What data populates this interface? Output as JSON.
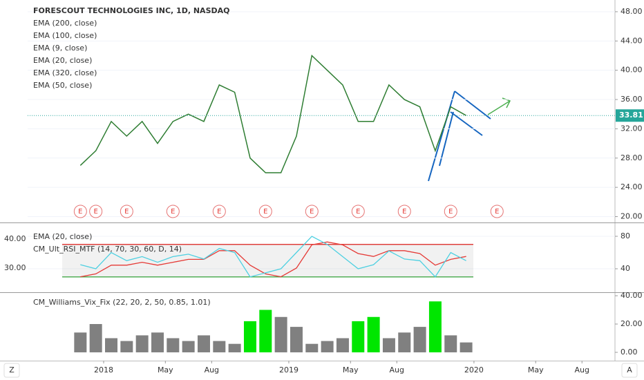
{
  "chart_data": [
    {
      "type": "line",
      "title": "FORESCOUT TECHNOLOGIES INC, 1D, NASDAQ",
      "legend": [
        {
          "name": "EMA (200, close)",
          "color": "#1e3a8a"
        },
        {
          "name": "EMA (100, close)",
          "color": "#8bc34a"
        },
        {
          "name": "EMA (9, close)",
          "color": "#26a69a"
        },
        {
          "name": "EMA (20, close)",
          "color": "#42a5f5"
        },
        {
          "name": "EMA (320, close)",
          "color": "#ef6c00"
        },
        {
          "name": "EMA (50, close)",
          "color": "#fbc02d"
        }
      ],
      "x": [
        "2017-11",
        "2017-12",
        "2018-01",
        "2018-02",
        "2018-03",
        "2018-04",
        "2018-05",
        "2018-06",
        "2018-07",
        "2018-08",
        "2018-09",
        "2018-10",
        "2018-11",
        "2018-12",
        "2019-01",
        "2019-02",
        "2019-03",
        "2019-04",
        "2019-05",
        "2019-06",
        "2019-07",
        "2019-08",
        "2019-09",
        "2019-10",
        "2019-11",
        "2019-12"
      ],
      "values": [
        27,
        29,
        33,
        31,
        33,
        30,
        33,
        34,
        33,
        38,
        37,
        28,
        26,
        26,
        31,
        42,
        40,
        38,
        33,
        33,
        38,
        36,
        35,
        29,
        35,
        33.81
      ],
      "color": "#2e7d32",
      "ylim": [
        19.2,
        49.6
      ],
      "yticks": [
        {
          "value": 20,
          "label": "20.00"
        },
        {
          "value": 24,
          "label": "24.00"
        },
        {
          "value": 28,
          "label": "28.00"
        },
        {
          "value": 32,
          "label": "32.00"
        },
        {
          "value": 36,
          "label": "36.00"
        },
        {
          "value": 40,
          "label": "40.00"
        },
        {
          "value": 44,
          "label": "44.00"
        },
        {
          "value": 48,
          "label": "48.00"
        }
      ],
      "last_price": 33.81,
      "last_price_color": "#26a69a",
      "earnings": [
        "2017-11",
        "2017-12",
        "2018-02",
        "2018-05",
        "2018-08",
        "2018-11",
        "2019-02",
        "2019-05",
        "2019-08",
        "2019-11",
        "2020-02"
      ],
      "earnings_label": "E"
    },
    {
      "type": "line",
      "x": [
        "2017-11",
        "2017-12",
        "2018-01",
        "2018-02",
        "2018-03",
        "2018-04",
        "2018-05",
        "2018-06",
        "2018-07",
        "2018-08",
        "2018-09",
        "2018-10",
        "2018-11",
        "2018-12",
        "2019-01",
        "2019-02",
        "2019-03",
        "2019-04",
        "2019-05",
        "2019-06",
        "2019-07",
        "2019-08",
        "2019-09",
        "2019-10",
        "2019-11",
        "2019-12"
      ],
      "series": [
        {
          "name": "EMA (20, close)",
          "color": "#e53935",
          "axis": "y2",
          "values": [
            27,
            28,
            31,
            31,
            32,
            31,
            32,
            33,
            33,
            36,
            36,
            31,
            28,
            27,
            30,
            38,
            39,
            38,
            35,
            34,
            36,
            36,
            35,
            31,
            33,
            34
          ]
        },
        {
          "name": "CM_Ult_RSI_MTF (14, 70, 30, 60, D, 14)",
          "color": "#4dd0e1",
          "values": [
            45,
            40,
            60,
            50,
            55,
            48,
            55,
            58,
            52,
            65,
            60,
            30,
            35,
            40,
            60,
            80,
            70,
            55,
            40,
            45,
            62,
            52,
            50,
            30,
            60,
            50
          ]
        }
      ],
      "ylim": [
        13.6,
        94.5
      ],
      "yticks": [
        40,
        80
      ],
      "y2lim": [
        22.38,
        45
      ],
      "y2ticks": [
        {
          "value": 30,
          "label": "30.00"
        },
        {
          "value": 40,
          "label": "40.00"
        }
      ],
      "bands": [
        {
          "value": 70,
          "color": "#e53935"
        },
        {
          "value": 30,
          "color": "#4caf50"
        }
      ]
    },
    {
      "type": "bar",
      "title": "CM_Williams_Vix_Fix (22, 20, 2, 50, 0.85, 1.01)",
      "x": [
        "2017-11",
        "2017-12",
        "2018-01",
        "2018-02",
        "2018-03",
        "2018-04",
        "2018-05",
        "2018-06",
        "2018-07",
        "2018-08",
        "2018-09",
        "2018-10",
        "2018-11",
        "2018-12",
        "2019-01",
        "2019-02",
        "2019-03",
        "2019-04",
        "2019-05",
        "2019-06",
        "2019-07",
        "2019-08",
        "2019-09",
        "2019-10",
        "2019-11",
        "2019-12"
      ],
      "values": [
        14,
        20,
        10,
        8,
        12,
        14,
        10,
        8,
        12,
        8,
        6,
        22,
        30,
        25,
        18,
        6,
        8,
        10,
        22,
        25,
        10,
        14,
        18,
        36,
        12,
        7
      ],
      "colors": [
        "#808080",
        "#808080",
        "#808080",
        "#808080",
        "#808080",
        "#808080",
        "#808080",
        "#808080",
        "#808080",
        "#808080",
        "#808080",
        "#00e600",
        "#00e600",
        "#808080",
        "#808080",
        "#808080",
        "#808080",
        "#808080",
        "#00e600",
        "#00e600",
        "#808080",
        "#808080",
        "#808080",
        "#00e600",
        "#808080",
        "#808080"
      ],
      "ylim": [
        -4.9,
        40.5
      ],
      "yticks": [
        {
          "value": 0,
          "label": "0.00"
        },
        {
          "value": 20,
          "label": "20.00"
        },
        {
          "value": 40,
          "label": "40.00"
        }
      ],
      "xticks": [
        {
          "value": "2018-01",
          "label": "2018"
        },
        {
          "value": "2018-05",
          "label": "May"
        },
        {
          "value": "2018-08",
          "label": "Aug"
        },
        {
          "value": "2019-01",
          "label": "2019"
        },
        {
          "value": "2019-05",
          "label": "May"
        },
        {
          "value": "2019-08",
          "label": "Aug"
        },
        {
          "value": "2020-01",
          "label": "2020"
        },
        {
          "value": "2020-05",
          "label": "May"
        },
        {
          "value": "2020-08",
          "label": "Aug"
        }
      ]
    }
  ],
  "toolbar": {
    "left": "Z",
    "right": "A"
  }
}
